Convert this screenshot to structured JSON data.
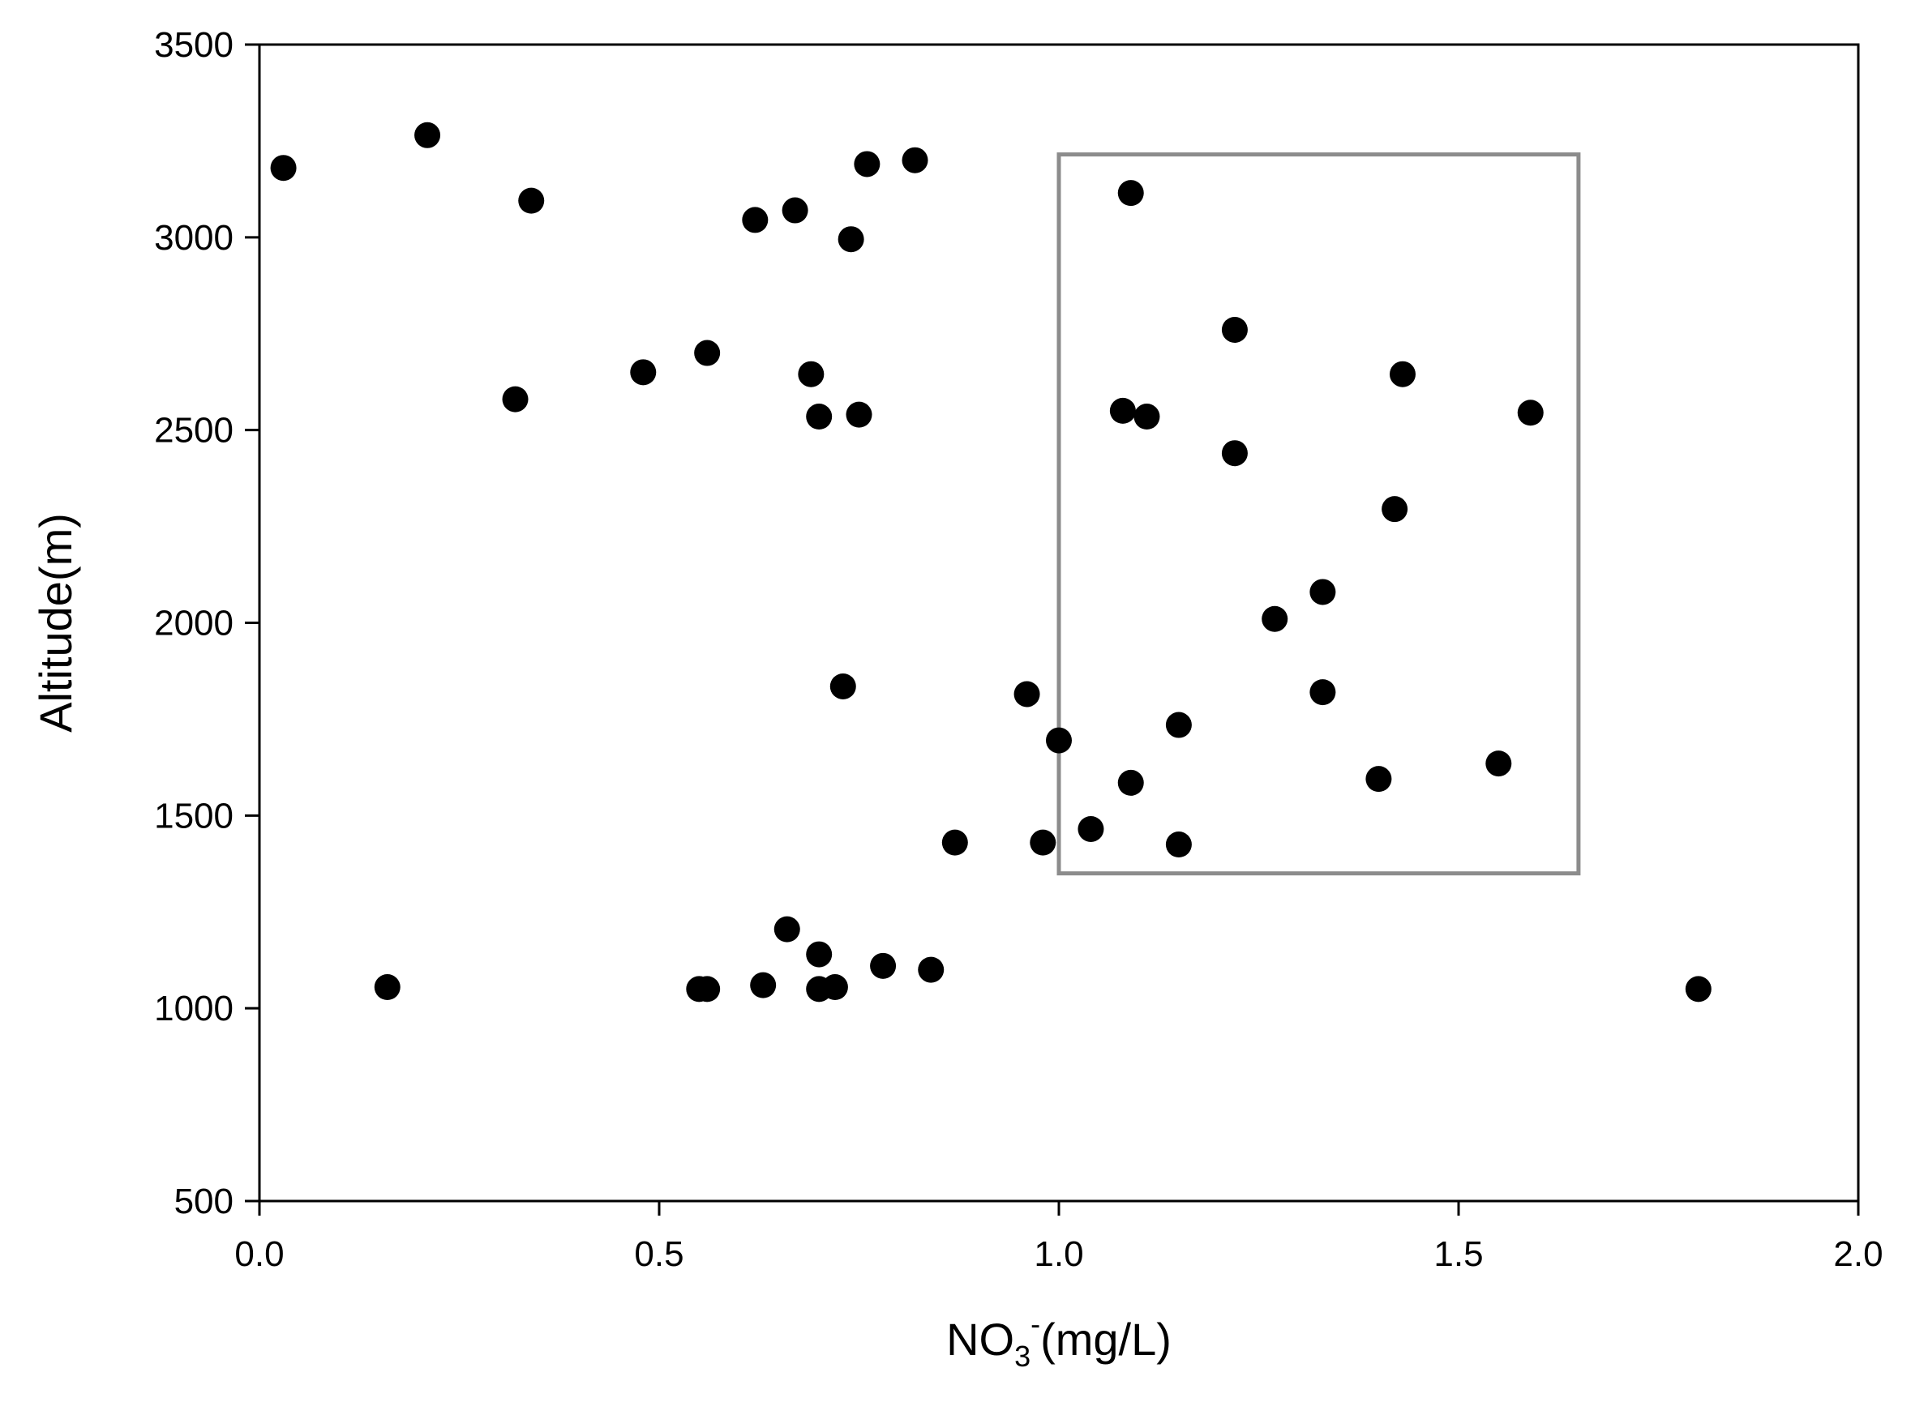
{
  "chart_data": {
    "type": "scatter",
    "title": "",
    "xlabel": "NO3-(mg/L)",
    "xlabel_parts": {
      "base": "NO",
      "sub": "3",
      "sup": "-",
      "rest": "(mg/L)"
    },
    "ylabel": "Altitude(m)",
    "xlim": [
      0.0,
      2.0
    ],
    "ylim": [
      500,
      3500
    ],
    "xticks": [
      0.0,
      0.5,
      1.0,
      1.5,
      2.0
    ],
    "xtick_labels": [
      "0.0",
      "0.5",
      "1.0",
      "1.5",
      "2.0"
    ],
    "yticks": [
      500,
      1000,
      1500,
      2000,
      2500,
      3000,
      3500
    ],
    "ytick_labels": [
      "500",
      "1000",
      "1500",
      "2000",
      "2500",
      "3000",
      "3500"
    ],
    "grid": false,
    "marker_color": "#000000",
    "highlight_box": {
      "x0": 1.0,
      "x1": 1.65,
      "y0": 1350,
      "y1": 3215,
      "color": "#8c8c8c"
    },
    "points": [
      {
        "x": 0.03,
        "y": 3180
      },
      {
        "x": 0.21,
        "y": 3265
      },
      {
        "x": 0.34,
        "y": 3095
      },
      {
        "x": 0.32,
        "y": 2580
      },
      {
        "x": 0.48,
        "y": 2650
      },
      {
        "x": 0.56,
        "y": 2700
      },
      {
        "x": 0.62,
        "y": 3045
      },
      {
        "x": 0.67,
        "y": 3070
      },
      {
        "x": 0.74,
        "y": 2995
      },
      {
        "x": 0.76,
        "y": 3190
      },
      {
        "x": 0.82,
        "y": 3200
      },
      {
        "x": 0.69,
        "y": 2645
      },
      {
        "x": 0.7,
        "y": 2535
      },
      {
        "x": 0.75,
        "y": 2540
      },
      {
        "x": 0.73,
        "y": 1835
      },
      {
        "x": 0.96,
        "y": 1815
      },
      {
        "x": 1.0,
        "y": 1695
      },
      {
        "x": 0.87,
        "y": 1430
      },
      {
        "x": 0.98,
        "y": 1430
      },
      {
        "x": 1.04,
        "y": 1465
      },
      {
        "x": 1.09,
        "y": 3115
      },
      {
        "x": 1.08,
        "y": 2550
      },
      {
        "x": 1.11,
        "y": 2535
      },
      {
        "x": 1.22,
        "y": 2760
      },
      {
        "x": 1.22,
        "y": 2440
      },
      {
        "x": 1.43,
        "y": 2645
      },
      {
        "x": 1.59,
        "y": 2545
      },
      {
        "x": 1.42,
        "y": 2295
      },
      {
        "x": 1.33,
        "y": 2080
      },
      {
        "x": 1.27,
        "y": 2010
      },
      {
        "x": 1.33,
        "y": 1820
      },
      {
        "x": 1.15,
        "y": 1735
      },
      {
        "x": 1.09,
        "y": 1585
      },
      {
        "x": 1.4,
        "y": 1595
      },
      {
        "x": 1.55,
        "y": 1635
      },
      {
        "x": 1.15,
        "y": 1425
      },
      {
        "x": 0.16,
        "y": 1055
      },
      {
        "x": 0.55,
        "y": 1050
      },
      {
        "x": 0.56,
        "y": 1050
      },
      {
        "x": 0.63,
        "y": 1060
      },
      {
        "x": 0.66,
        "y": 1205
      },
      {
        "x": 0.7,
        "y": 1140
      },
      {
        "x": 0.7,
        "y": 1050
      },
      {
        "x": 0.72,
        "y": 1055
      },
      {
        "x": 0.78,
        "y": 1110
      },
      {
        "x": 0.84,
        "y": 1100
      },
      {
        "x": 1.8,
        "y": 1050
      }
    ]
  }
}
